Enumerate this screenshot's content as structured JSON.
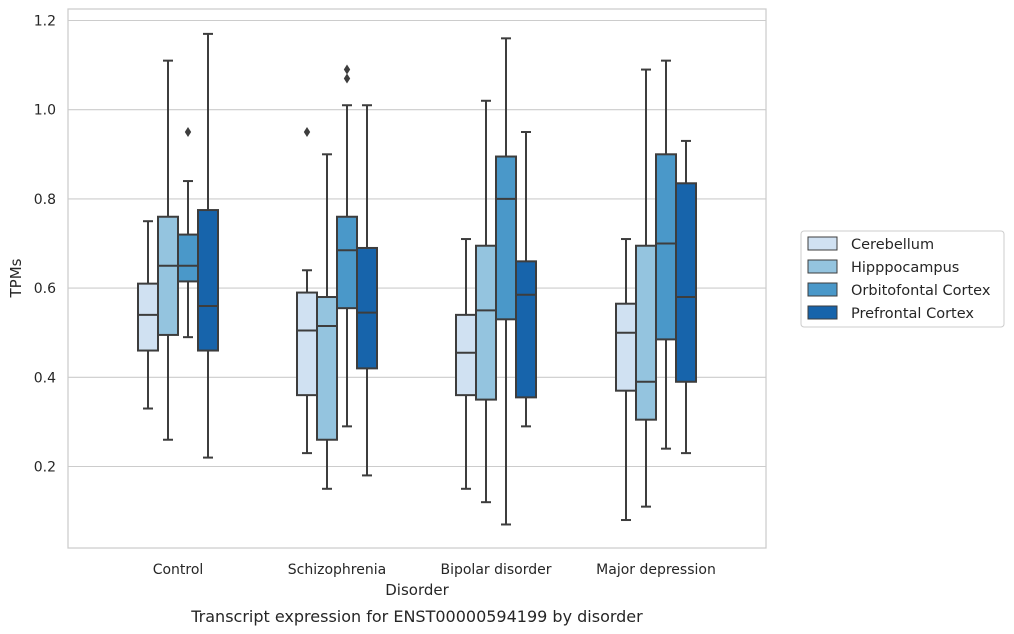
{
  "chart_data": {
    "type": "box",
    "caption": "Transcript expression for ENST00000594199 by disorder",
    "xlabel": "Disorder",
    "ylabel": "TPMs",
    "ylim": [
      0.02,
      1.225
    ],
    "yticks": [
      0.2,
      0.4,
      0.6,
      0.8,
      1.0,
      1.2
    ],
    "ytick_labels": [
      "0.2",
      "0.4",
      "0.6",
      "0.8",
      "1.0",
      "1.2"
    ],
    "grid": "horizontal",
    "legend_position": "right",
    "categories": [
      "Control",
      "Schizophrenia",
      "Bipolar disorder",
      "Major depression"
    ],
    "series": [
      {
        "name": "Cerebellum",
        "color": "#d0e1f2",
        "boxes": [
          {
            "whisker_low": 0.33,
            "q1": 0.46,
            "median": 0.54,
            "q3": 0.61,
            "whisker_high": 0.75,
            "outliers": []
          },
          {
            "whisker_low": 0.23,
            "q1": 0.36,
            "median": 0.505,
            "q3": 0.59,
            "whisker_high": 0.64,
            "outliers": [
              0.95
            ]
          },
          {
            "whisker_low": 0.15,
            "q1": 0.36,
            "median": 0.455,
            "q3": 0.54,
            "whisker_high": 0.71,
            "outliers": []
          },
          {
            "whisker_low": 0.08,
            "q1": 0.37,
            "median": 0.5,
            "q3": 0.565,
            "whisker_high": 0.71,
            "outliers": []
          }
        ]
      },
      {
        "name": "Hipppocampus",
        "color": "#94c4df",
        "boxes": [
          {
            "whisker_low": 0.26,
            "q1": 0.495,
            "median": 0.65,
            "q3": 0.76,
            "whisker_high": 1.11,
            "outliers": []
          },
          {
            "whisker_low": 0.15,
            "q1": 0.26,
            "median": 0.515,
            "q3": 0.58,
            "whisker_high": 0.9,
            "outliers": []
          },
          {
            "whisker_low": 0.12,
            "q1": 0.35,
            "median": 0.55,
            "q3": 0.695,
            "whisker_high": 1.02,
            "outliers": []
          },
          {
            "whisker_low": 0.11,
            "q1": 0.305,
            "median": 0.39,
            "q3": 0.695,
            "whisker_high": 1.09,
            "outliers": []
          }
        ]
      },
      {
        "name": "Orbitofontal Cortex",
        "color": "#4a98c9",
        "boxes": [
          {
            "whisker_low": 0.49,
            "q1": 0.615,
            "median": 0.65,
            "q3": 0.72,
            "whisker_high": 0.84,
            "outliers": [
              0.95
            ]
          },
          {
            "whisker_low": 0.29,
            "q1": 0.555,
            "median": 0.685,
            "q3": 0.76,
            "whisker_high": 1.01,
            "outliers": [
              1.07,
              1.09
            ]
          },
          {
            "whisker_low": 0.07,
            "q1": 0.53,
            "median": 0.8,
            "q3": 0.895,
            "whisker_high": 1.16,
            "outliers": []
          },
          {
            "whisker_low": 0.24,
            "q1": 0.485,
            "median": 0.7,
            "q3": 0.9,
            "whisker_high": 1.11,
            "outliers": []
          }
        ]
      },
      {
        "name": "Prefrontal Cortex",
        "color": "#1764ab",
        "boxes": [
          {
            "whisker_low": 0.22,
            "q1": 0.46,
            "median": 0.56,
            "q3": 0.775,
            "whisker_high": 1.17,
            "outliers": []
          },
          {
            "whisker_low": 0.18,
            "q1": 0.42,
            "median": 0.545,
            "q3": 0.69,
            "whisker_high": 1.01,
            "outliers": []
          },
          {
            "whisker_low": 0.29,
            "q1": 0.355,
            "median": 0.585,
            "q3": 0.66,
            "whisker_high": 0.95,
            "outliers": []
          },
          {
            "whisker_low": 0.23,
            "q1": 0.39,
            "median": 0.58,
            "q3": 0.835,
            "whisker_high": 0.93,
            "outliers": []
          }
        ]
      }
    ]
  }
}
